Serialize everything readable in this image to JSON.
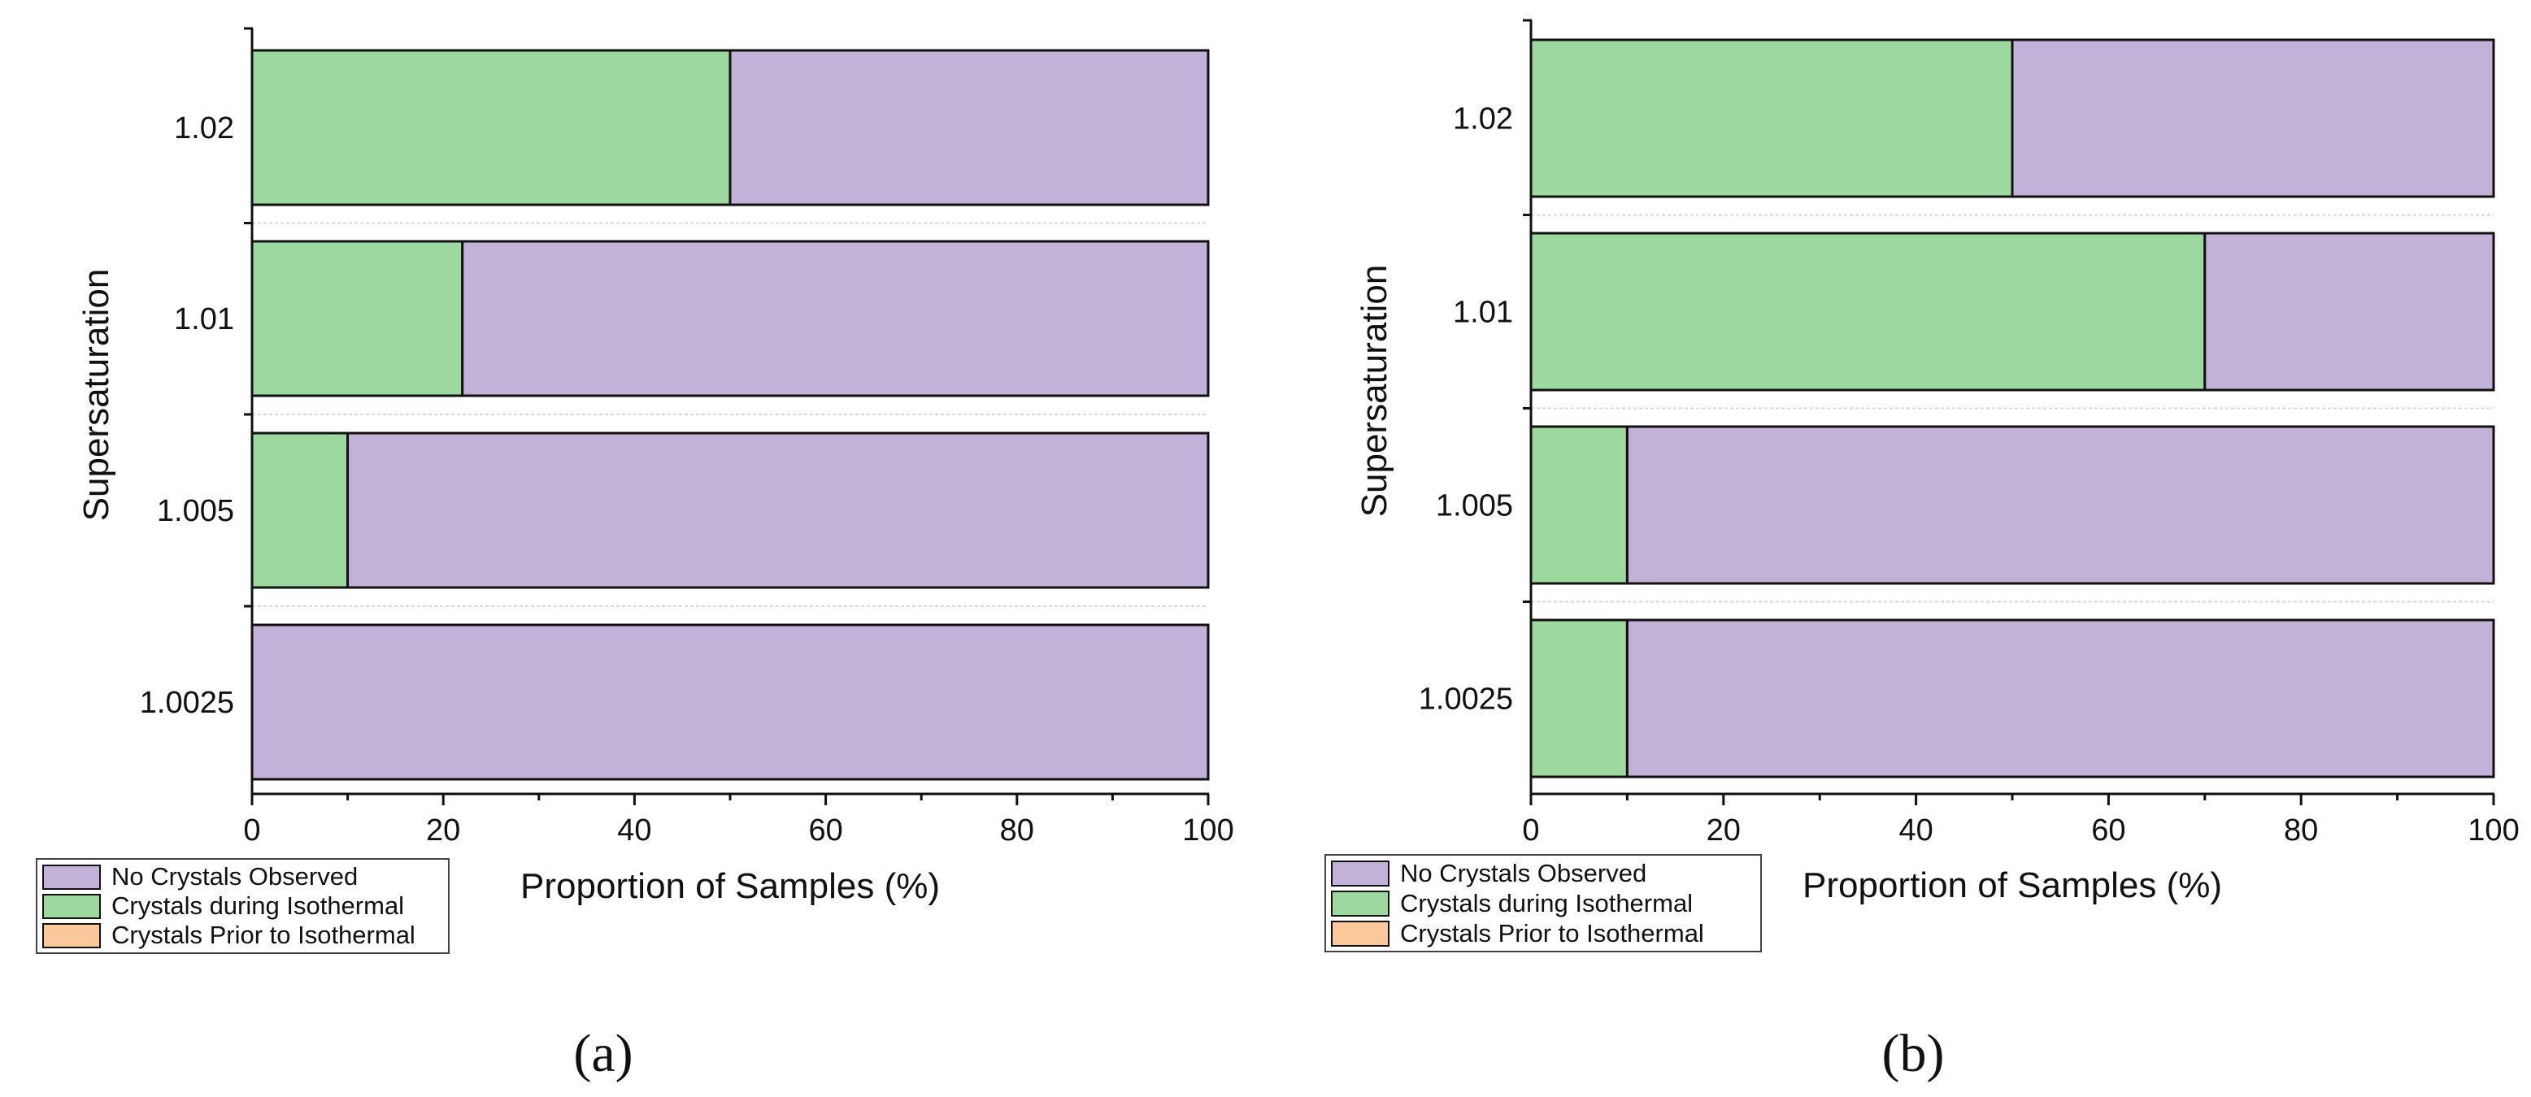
{
  "colors": {
    "none": "#c2b2d7",
    "during": "#9dd89f",
    "prior": "#fbc89b",
    "stroke": "#111111",
    "grid": "#d9d9d9"
  },
  "chart_data": [
    {
      "type": "bar",
      "orientation": "horizontal",
      "stacked": true,
      "title": "",
      "panel_label": "(a)",
      "xlabel": "Proportion of Samples (%)",
      "ylabel": "Supersaturation",
      "xlim": [
        0,
        100
      ],
      "xticks": [
        "0",
        "20",
        "40",
        "60",
        "80",
        "100"
      ],
      "categories": [
        "1.02",
        "1.01",
        "1.005",
        "1.0025"
      ],
      "series": [
        {
          "name": "Crystals Prior to Isothermal",
          "key": "prior",
          "values": [
            0,
            0,
            0,
            0
          ]
        },
        {
          "name": "Crystals during Isothermal",
          "key": "during",
          "values": [
            50,
            22,
            10,
            0
          ]
        },
        {
          "name": "No Crystals Observed",
          "key": "none",
          "values": [
            50,
            78,
            90,
            100
          ]
        }
      ],
      "legend": {
        "placement": "bottom-left",
        "items": [
          {
            "label": "No Crystals Observed",
            "key": "none"
          },
          {
            "label": "Crystals during Isothermal",
            "key": "during"
          },
          {
            "label": "Crystals Prior to Isothermal",
            "key": "prior"
          }
        ]
      }
    },
    {
      "type": "bar",
      "orientation": "horizontal",
      "stacked": true,
      "title": "",
      "panel_label": "(b)",
      "xlabel": "Proportion of Samples (%)",
      "ylabel": "Supersaturation",
      "xlim": [
        0,
        100
      ],
      "xticks": [
        "0",
        "20",
        "40",
        "60",
        "80",
        "100"
      ],
      "categories": [
        "1.02",
        "1.01",
        "1.005",
        "1.0025"
      ],
      "series": [
        {
          "name": "Crystals Prior to Isothermal",
          "key": "prior",
          "values": [
            0,
            0,
            0,
            0
          ]
        },
        {
          "name": "Crystals during Isothermal",
          "key": "during",
          "values": [
            50,
            70,
            10,
            10
          ]
        },
        {
          "name": "No Crystals Observed",
          "key": "none",
          "values": [
            50,
            30,
            90,
            90
          ]
        }
      ],
      "legend": {
        "placement": "bottom-left",
        "items": [
          {
            "label": "No Crystals Observed",
            "key": "none"
          },
          {
            "label": "Crystals during Isothermal",
            "key": "during"
          },
          {
            "label": "Crystals Prior to Isothermal",
            "key": "prior"
          }
        ]
      }
    }
  ]
}
